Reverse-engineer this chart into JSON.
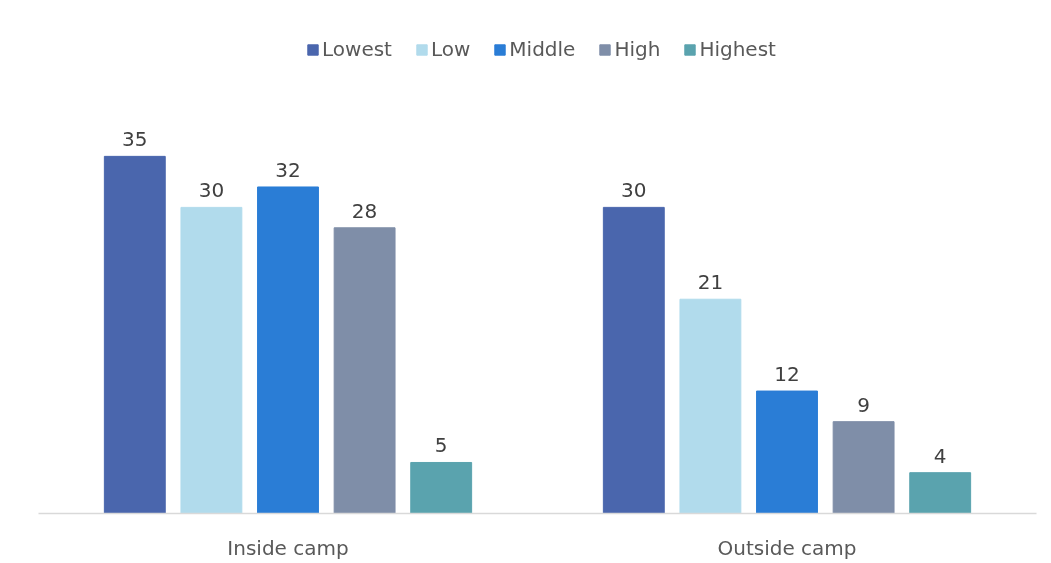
{
  "chart_data": {
    "type": "bar",
    "categories": [
      "Inside camp",
      "Outside camp"
    ],
    "series": [
      {
        "name": "Lowest",
        "color": "#4a66ad",
        "values": [
          35,
          30
        ]
      },
      {
        "name": "Low",
        "color": "#b1dbec",
        "values": [
          30,
          21
        ]
      },
      {
        "name": "Middle",
        "color": "#2a7dd6",
        "values": [
          32,
          12
        ]
      },
      {
        "name": "High",
        "color": "#7f8ea8",
        "values": [
          28,
          9
        ]
      },
      {
        "name": "Highest",
        "color": "#5aa3ae",
        "values": [
          5,
          4
        ]
      }
    ],
    "data_labels": true,
    "legend": "top",
    "tick_labels": "x"
  }
}
